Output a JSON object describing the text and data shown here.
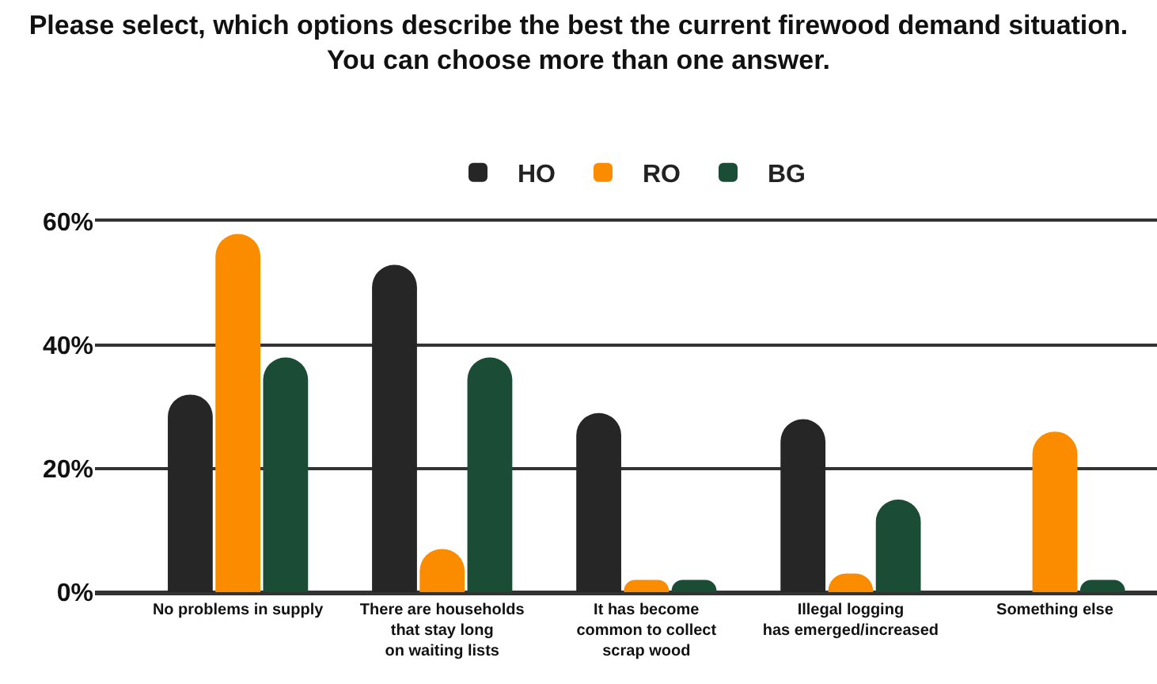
{
  "chart_data": {
    "type": "bar",
    "title": "Please select, which options describe the best the current firewood demand situation.\nYou can choose more than one answer.",
    "categories": [
      "No problems in supply",
      "There are households\nthat stay long\non waiting lists",
      "It has become\ncommon to collect\nscrap wood",
      "Illegal logging\nhas emerged/increased",
      "Something else"
    ],
    "series": [
      {
        "name": "HO",
        "color": "#262626",
        "values": [
          32,
          53,
          29,
          28,
          null
        ]
      },
      {
        "name": "RO",
        "color": "#fb8c00",
        "values": [
          58,
          7,
          2,
          3,
          26
        ]
      },
      {
        "name": "BG",
        "color": "#1b4d36",
        "values": [
          38,
          38,
          2,
          15,
          2
        ]
      }
    ],
    "ylim": [
      0,
      60
    ],
    "yticks": [
      {
        "value": 0,
        "label": "0%"
      },
      {
        "value": 20,
        "label": "20%"
      },
      {
        "value": 40,
        "label": "40%"
      },
      {
        "value": 60,
        "label": "60%"
      }
    ],
    "grid": "y",
    "legend": "top"
  }
}
